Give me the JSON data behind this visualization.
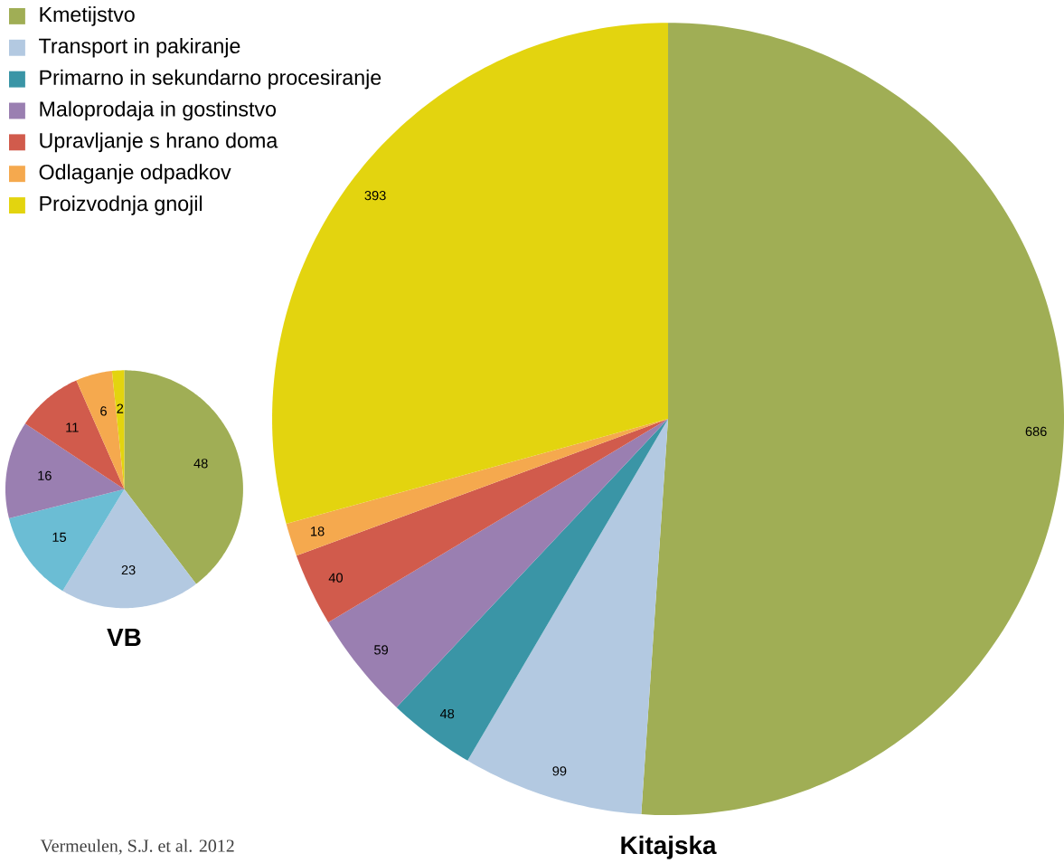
{
  "chart_data": [
    {
      "type": "pie",
      "title": "Kitajska",
      "categories": [
        "Kmetijstvo",
        "Transport in pakiranje",
        "Primarno in sekundarno procesiranje",
        "Maloprodaja in gostinstvo",
        "Upravljanje s hrano doma",
        "Odlaganje odpadkov",
        "Proizvodnja gnojil"
      ],
      "values": [
        686,
        99,
        48,
        59,
        40,
        18,
        393
      ],
      "colors": [
        "#a0ae55",
        "#b3c9e1",
        "#3a95a6",
        "#9a7fb1",
        "#d15b4c",
        "#f5a94e",
        "#e3d40f"
      ],
      "data_labels": true,
      "legend": "top left",
      "annotations": [
        "Vermeulen, S.J. et al. 2012"
      ]
    },
    {
      "type": "pie",
      "title": "VB",
      "categories": [
        null,
        null,
        null,
        null,
        null,
        null,
        null
      ],
      "values": [
        48,
        23,
        15,
        16,
        11,
        6,
        2
      ],
      "colors": [
        "#a0ae55",
        "#b3c9e1",
        "#6bbdd4",
        "#9a7fb1",
        "#d15b4c",
        "#f5a94e",
        "#e3d40f"
      ],
      "data_labels": true
    }
  ]
}
